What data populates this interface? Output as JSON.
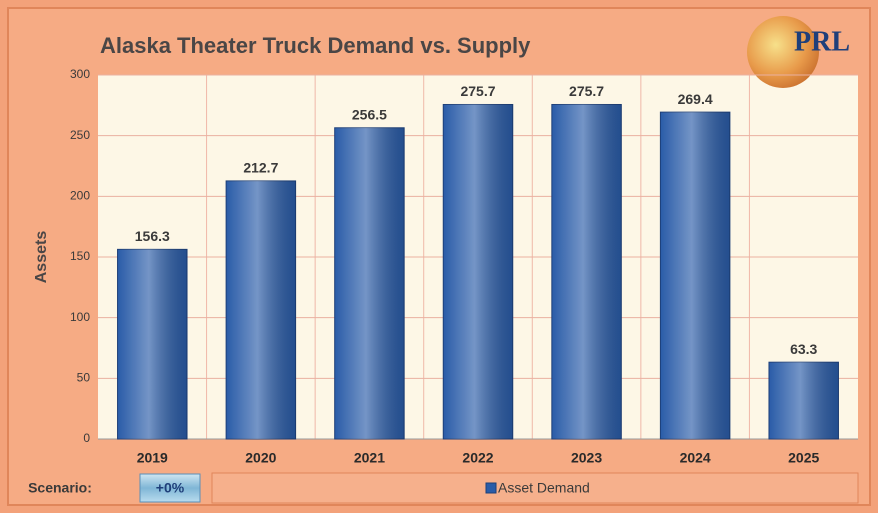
{
  "chart_data": {
    "type": "bar",
    "title": "Alaska Theater Truck Demand vs. Supply",
    "logo": "PRL",
    "y_label": "Assets",
    "categories": [
      "2019",
      "2020",
      "2021",
      "2022",
      "2023",
      "2024",
      "2025"
    ],
    "series": [
      {
        "name": "Asset Demand",
        "color": "#2a5ca8",
        "values": [
          156.3,
          212.7,
          256.5,
          275.7,
          275.7,
          269.4,
          63.3
        ]
      }
    ],
    "ylim": [
      0,
      300
    ],
    "yticks": [
      0,
      50,
      100,
      150,
      200,
      250,
      300
    ],
    "grid": true,
    "scenario_label": "Scenario:",
    "scenario": "+0%"
  }
}
